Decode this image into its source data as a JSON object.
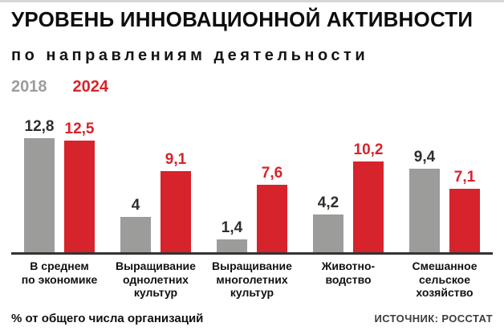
{
  "header": {
    "title": "УРОВЕНЬ ИННОВАЦИОННОЙ АКТИВНОСТИ",
    "subtitle": "по направлениям деятельности"
  },
  "legend": {
    "year_2018": "2018",
    "year_2024": "2024"
  },
  "footer": {
    "note": "% от общего числа организаций",
    "source": "ИСТОЧНИК: РОССТАТ"
  },
  "colors": {
    "bar_2018": "#9c9c9a",
    "bar_2024": "#d7232b",
    "value_2018_text": "#2e2e2e",
    "value_2024_text": "#d7232b",
    "baseline": "#333333"
  },
  "chart_data": {
    "type": "bar",
    "title": "УРОВЕНЬ ИННОВАЦИОННОЙ АКТИВНОСТИ",
    "subtitle": "по направлениям деятельности",
    "ylabel": "% от общего числа организаций",
    "ylim": [
      0,
      13
    ],
    "grid": false,
    "legend_position": "top-left",
    "source": "ИСТОЧНИК: РОССТАТ",
    "categories": [
      "В среднем\nпо экономике",
      "Выращивание\nоднолетних\nкультур",
      "Выращивание\nмноголетних\nкультур",
      "Животно-\nводство",
      "Смешанное\nсельское\nхозяйство"
    ],
    "series": [
      {
        "name": "2018",
        "color": "#9c9c9a",
        "values": [
          12.8,
          4,
          1.4,
          4.2,
          9.4
        ],
        "labels": [
          "12,8",
          "4",
          "1,4",
          "4,2",
          "9,4"
        ]
      },
      {
        "name": "2024",
        "color": "#d7232b",
        "values": [
          12.5,
          9.1,
          7.6,
          10.2,
          7.1
        ],
        "labels": [
          "12,5",
          "9,1",
          "7,6",
          "10,2",
          "7,1"
        ]
      }
    ]
  }
}
